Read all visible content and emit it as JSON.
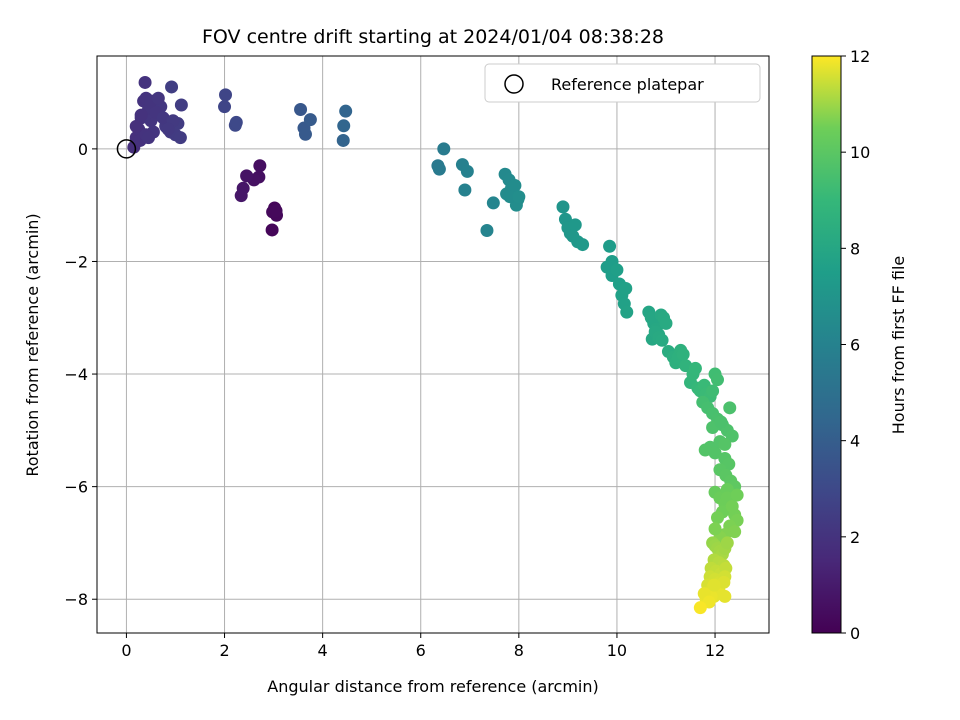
{
  "chart_data": {
    "type": "scatter",
    "title": "FOV centre drift starting at 2024/01/04 08:38:28",
    "xlabel": "Angular distance from reference (arcmin)",
    "ylabel": "Rotation from reference (arcmin)",
    "xlim": [
      -0.6,
      13.1
    ],
    "ylim": [
      -8.6,
      1.65
    ],
    "x_ticks": [
      0,
      2,
      4,
      6,
      8,
      10,
      12
    ],
    "y_ticks": [
      0,
      -2,
      -4,
      -6,
      -8
    ],
    "grid": true,
    "legend": {
      "placement": "top-right",
      "entries": [
        "Reference platepar"
      ]
    },
    "reference_point": {
      "x": 0,
      "y": 0
    },
    "colorbar": {
      "label": "Hours from first FF file",
      "range": [
        0,
        12
      ],
      "ticks": [
        0,
        2,
        4,
        6,
        8,
        10,
        12
      ],
      "colormap": [
        "#440154",
        "#3b528b",
        "#21918c",
        "#5ec962",
        "#fde725"
      ]
    },
    "series": [
      {
        "x": [
          2.97,
          3.02,
          3.06,
          2.98,
          2.72,
          2.7,
          2.6,
          2.45,
          2.38,
          2.34,
          3.05
        ],
        "y": [
          -1.44,
          -1.05,
          -1.18,
          -1.12,
          -0.3,
          -0.5,
          -0.55,
          -0.48,
          -0.7,
          -0.83,
          -1.1
        ],
        "c": [
          0.2,
          0.2,
          0.25,
          0.3,
          0.5,
          0.55,
          0.6,
          0.7,
          0.8,
          0.85,
          0.3
        ]
      },
      {
        "x": [
          0.15,
          0.2,
          0.25,
          0.3,
          0.35,
          0.4,
          0.45,
          0.5,
          0.55,
          0.6,
          0.7,
          0.8,
          0.9,
          1.0,
          1.05,
          1.1,
          1.12,
          0.38,
          0.92,
          0.28,
          0.4,
          0.6,
          0.75,
          0.95,
          0.5,
          0.2,
          0.3,
          0.45,
          0.65,
          0.85
        ],
        "y": [
          0.03,
          0.2,
          0.35,
          0.55,
          0.85,
          0.9,
          0.7,
          0.5,
          0.3,
          0.6,
          0.75,
          0.4,
          0.3,
          0.25,
          0.45,
          0.2,
          0.78,
          1.18,
          1.1,
          0.15,
          0.25,
          0.65,
          0.55,
          0.5,
          0.85,
          0.4,
          0.6,
          0.2,
          0.9,
          0.35
        ],
        "c": [
          1.8,
          1.85,
          1.9,
          1.95,
          2.0,
          2.0,
          2.05,
          2.1,
          2.1,
          2.15,
          2.2,
          2.25,
          2.3,
          2.35,
          2.4,
          2.4,
          2.45,
          2.0,
          2.5,
          1.9,
          2.0,
          2.1,
          2.2,
          2.3,
          2.05,
          1.85,
          1.95,
          2.05,
          2.15,
          2.25
        ]
      },
      {
        "x": [
          2.02,
          2.0,
          2.22,
          2.24,
          3.55,
          3.62,
          3.65,
          3.75,
          4.42,
          4.47,
          4.43
        ],
        "y": [
          0.96,
          0.75,
          0.42,
          0.47,
          0.7,
          0.37,
          0.26,
          0.52,
          0.15,
          0.67,
          0.41
        ],
        "c": [
          2.8,
          2.8,
          3.0,
          3.0,
          3.7,
          3.75,
          3.8,
          3.85,
          4.3,
          4.35,
          4.4
        ]
      },
      {
        "x": [
          6.47,
          6.35,
          6.38,
          6.85,
          6.95,
          6.9,
          7.35,
          7.48,
          7.72,
          7.8,
          7.85,
          7.75,
          7.92,
          7.98,
          7.95,
          7.82,
          8.0
        ],
        "y": [
          0.0,
          -0.3,
          -0.36,
          -0.28,
          -0.4,
          -0.73,
          -1.45,
          -0.96,
          -0.45,
          -0.55,
          -0.7,
          -0.8,
          -0.65,
          -0.9,
          -1.0,
          -0.85,
          -0.85
        ],
        "c": [
          5.6,
          5.5,
          5.55,
          5.9,
          5.95,
          5.95,
          6.1,
          6.15,
          6.4,
          6.45,
          6.5,
          6.5,
          6.55,
          6.6,
          6.6,
          6.55,
          6.65
        ]
      },
      {
        "x": [
          8.9,
          8.95,
          9.0,
          9.05,
          9.1,
          9.15,
          9.2,
          9.3,
          9.85,
          9.9,
          9.8,
          9.9,
          10.0,
          10.05,
          10.1,
          10.15,
          10.2,
          10.18
        ],
        "y": [
          -1.03,
          -1.25,
          -1.4,
          -1.5,
          -1.55,
          -1.35,
          -1.65,
          -1.7,
          -1.73,
          -2.0,
          -2.1,
          -2.25,
          -2.15,
          -2.4,
          -2.6,
          -2.75,
          -2.9,
          -2.48
        ],
        "c": [
          7.0,
          7.05,
          7.1,
          7.1,
          7.15,
          7.2,
          7.2,
          7.25,
          7.4,
          7.45,
          7.45,
          7.5,
          7.55,
          7.6,
          7.65,
          7.7,
          7.75,
          7.7
        ]
      },
      {
        "x": [
          10.65,
          10.7,
          10.75,
          10.8,
          10.85,
          10.9,
          10.95,
          11.0,
          10.72,
          10.78,
          10.85,
          10.92,
          11.05,
          11.15,
          11.2,
          11.25,
          11.3,
          11.35,
          11.4,
          11.5,
          11.55,
          11.6,
          11.65,
          11.7,
          11.78,
          11.82,
          11.9,
          11.95,
          12.0,
          12.05
        ],
        "y": [
          -2.9,
          -3.0,
          -3.1,
          -3.2,
          -3.3,
          -2.95,
          -3.0,
          -3.1,
          -3.38,
          -3.25,
          -3.35,
          -3.4,
          -3.6,
          -3.7,
          -3.8,
          -3.7,
          -3.58,
          -3.65,
          -3.85,
          -4.15,
          -4.0,
          -3.9,
          -4.25,
          -4.3,
          -4.2,
          -4.35,
          -4.4,
          -4.3,
          -4.0,
          -4.1
        ],
        "c": [
          7.9,
          7.95,
          8.0,
          8.05,
          8.1,
          8.1,
          8.15,
          8.2,
          8.05,
          8.1,
          8.15,
          8.2,
          8.35,
          8.45,
          8.5,
          8.55,
          8.6,
          8.65,
          8.7,
          8.85,
          8.9,
          8.95,
          9.0,
          9.05,
          9.1,
          9.15,
          9.2,
          9.25,
          9.3,
          9.35
        ]
      },
      {
        "x": [
          11.75,
          11.85,
          11.95,
          12.05,
          12.15,
          12.25,
          12.3,
          12.35,
          11.9,
          12.0,
          12.1,
          12.2,
          12.28,
          11.8,
          11.95,
          12.1,
          12.22,
          12.32,
          12.4,
          12.2,
          12.12
        ],
        "y": [
          -4.5,
          -4.6,
          -4.7,
          -4.8,
          -4.9,
          -5.0,
          -4.6,
          -5.1,
          -5.3,
          -5.4,
          -5.2,
          -5.5,
          -5.6,
          -5.35,
          -4.95,
          -5.7,
          -5.8,
          -5.9,
          -6.0,
          -5.25,
          -4.85
        ],
        "c": [
          9.4,
          9.45,
          9.5,
          9.55,
          9.6,
          9.65,
          9.6,
          9.7,
          9.75,
          9.8,
          9.75,
          9.85,
          9.9,
          9.8,
          9.65,
          9.95,
          10.0,
          10.05,
          10.1,
          9.85,
          9.6
        ]
      },
      {
        "x": [
          12.0,
          12.1,
          12.2,
          12.3,
          12.4,
          12.45,
          12.35,
          12.25,
          12.15,
          12.05,
          12.3,
          12.4,
          12.2,
          12.1,
          12.0,
          12.25,
          12.35,
          12.45
        ],
        "y": [
          -6.1,
          -6.2,
          -6.3,
          -6.4,
          -6.5,
          -6.6,
          -6.15,
          -6.05,
          -6.45,
          -6.55,
          -6.7,
          -6.8,
          -6.85,
          -6.9,
          -6.75,
          -6.2,
          -6.35,
          -6.15
        ],
        "c": [
          10.3,
          10.4,
          10.45,
          10.5,
          10.55,
          10.6,
          10.4,
          10.35,
          10.5,
          10.55,
          10.65,
          10.7,
          10.7,
          10.75,
          10.65,
          10.45,
          10.55,
          10.5
        ]
      },
      {
        "x": [
          11.95,
          12.0,
          12.05,
          12.1,
          12.15,
          12.2,
          12.25,
          11.98,
          12.08,
          12.18,
          11.92,
          12.02,
          12.12,
          12.22,
          11.9,
          12.0,
          12.1,
          12.2,
          11.85,
          11.95,
          12.05,
          11.88,
          11.98,
          12.08,
          12.18,
          11.82,
          11.92,
          11.78,
          11.88,
          11.98,
          12.2,
          11.7
        ],
        "y": [
          -7.0,
          -7.05,
          -7.1,
          -7.15,
          -7.2,
          -7.1,
          -7.0,
          -7.3,
          -7.35,
          -7.4,
          -7.45,
          -7.5,
          -7.55,
          -7.45,
          -7.6,
          -7.65,
          -7.7,
          -7.6,
          -7.75,
          -7.8,
          -7.85,
          -7.9,
          -7.95,
          -7.85,
          -7.7,
          -8.0,
          -7.95,
          -7.9,
          -8.05,
          -7.75,
          -7.95,
          -8.15
        ],
        "c": [
          10.9,
          10.95,
          11.0,
          11.05,
          11.1,
          11.05,
          11.0,
          11.2,
          11.25,
          11.3,
          11.35,
          11.4,
          11.45,
          11.4,
          11.5,
          11.55,
          11.6,
          11.55,
          11.6,
          11.65,
          11.7,
          11.7,
          11.75,
          11.75,
          11.65,
          11.8,
          11.8,
          11.78,
          11.85,
          11.7,
          11.75,
          11.95
        ]
      }
    ]
  }
}
